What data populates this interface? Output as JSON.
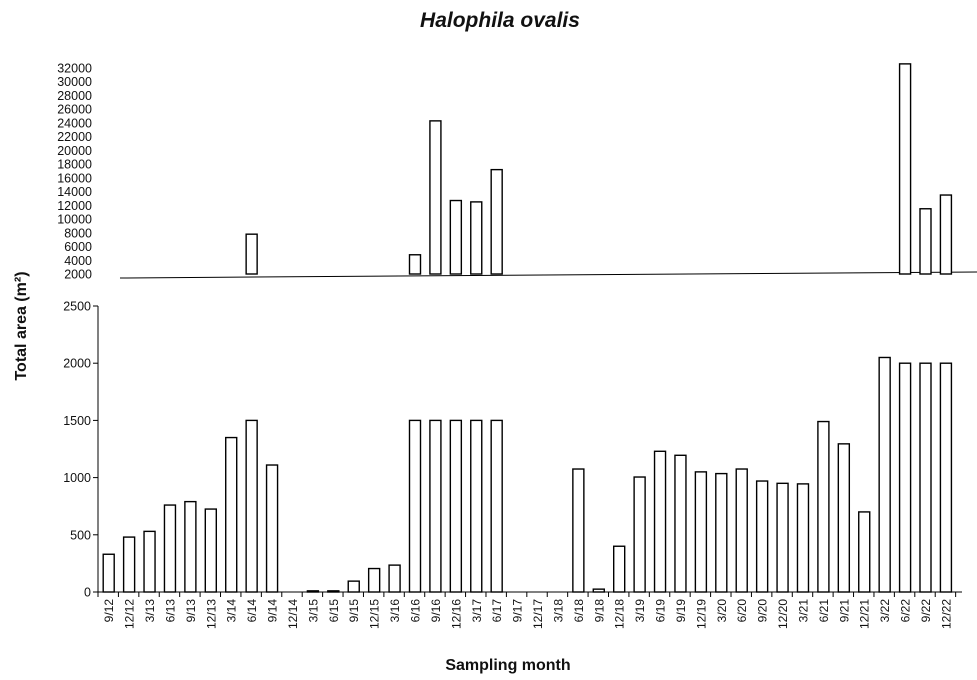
{
  "chart_data": {
    "type": "bar",
    "title": "Halophila ovalis",
    "xlabel": "Sampling month",
    "ylabel": "Total area (m²)",
    "categories": [
      "9/12",
      "12/12",
      "3/13",
      "6/13",
      "9/13",
      "12/13",
      "3/14",
      "6/14",
      "9/14",
      "12/14",
      "3/15",
      "6/15",
      "9/15",
      "12/15",
      "3/16",
      "6/16",
      "9/16",
      "12/16",
      "3/17",
      "6/17",
      "9/17",
      "12/17",
      "3/18",
      "6/18",
      "9/18",
      "12/18",
      "3/19",
      "6/19",
      "9/19",
      "12/19",
      "3/20",
      "6/20",
      "9/20",
      "12/20",
      "3/21",
      "6/21",
      "9/21",
      "12/21",
      "3/22",
      "6/22",
      "9/22",
      "12/22"
    ],
    "panels": [
      {
        "name": "top",
        "ylim": [
          2000,
          32000
        ],
        "yticks": [
          2000,
          4000,
          6000,
          8000,
          10000,
          12000,
          14000,
          16000,
          18000,
          20000,
          22000,
          24000,
          26000,
          28000,
          30000,
          32000
        ],
        "values": [
          null,
          null,
          null,
          null,
          null,
          null,
          null,
          7800,
          null,
          null,
          null,
          null,
          null,
          null,
          null,
          4800,
          24300,
          12700,
          12500,
          17200,
          null,
          null,
          null,
          null,
          null,
          null,
          null,
          null,
          null,
          null,
          null,
          null,
          null,
          null,
          null,
          null,
          null,
          null,
          null,
          32600,
          11500,
          13500
        ]
      },
      {
        "name": "bottom",
        "ylim": [
          0,
          2500
        ],
        "yticks": [
          0,
          500,
          1000,
          1500,
          2000,
          2500
        ],
        "values": [
          330,
          480,
          530,
          760,
          790,
          725,
          1350,
          1500,
          1110,
          0,
          10,
          10,
          95,
          205,
          235,
          1500,
          1500,
          1500,
          1500,
          1500,
          0,
          0,
          0,
          1075,
          25,
          400,
          1005,
          1230,
          1195,
          1050,
          1035,
          1075,
          970,
          950,
          945,
          1490,
          1295,
          700,
          2050,
          2000,
          2000,
          2000
        ]
      }
    ],
    "grid": false,
    "legend": "none"
  }
}
